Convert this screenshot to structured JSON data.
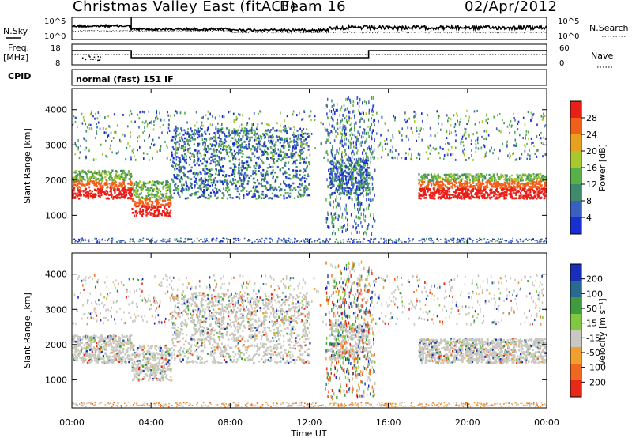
{
  "header": {
    "station": "Christmas Valley East (fitACF)",
    "beam": "Beam 16",
    "date": "02/Apr/2012"
  },
  "noise_panel": {
    "left_label": "N.Sky",
    "left_ticks": [
      "10^5",
      "10^0"
    ],
    "right_ticks": [
      "10^5",
      "10^0"
    ],
    "right_label": "N.Search"
  },
  "freq_panel": {
    "left_label_1": "Freq.",
    "left_label_2": "[MHz]",
    "left_ticks": [
      "18",
      "8"
    ],
    "right_ticks": [
      "60",
      "0"
    ],
    "right_label": "Nave"
  },
  "cpid_panel": {
    "label": "CPID",
    "mode": "normal (fast) 151 IF"
  },
  "colors": {
    "power": [
      "#1a2fd0",
      "#3a5fc0",
      "#3f8a6a",
      "#58b048",
      "#a8c830",
      "#e8a020",
      "#f06018",
      "#e82018"
    ],
    "velocity": [
      "#1a2fb8",
      "#2a6a90",
      "#3f9a40",
      "#80c840",
      "#c8c8c0",
      "#f0a030",
      "#f06820",
      "#e82818"
    ]
  },
  "chart_data": [
    {
      "type": "heatmap",
      "name": "Power",
      "ylabel": "Slant Range [km]",
      "xlabel": "",
      "ylim": [
        200,
        4600
      ],
      "yticks": [
        "1000",
        "2000",
        "3000",
        "4000"
      ],
      "colorbar": {
        "label": "Power [dB]",
        "range": [
          0,
          32
        ],
        "ticks": [
          "28",
          "24",
          "20",
          "16",
          "12",
          "8",
          "4"
        ]
      },
      "echo_bands_range_km": [
        {
          "t_start_h": 0.0,
          "t_end_h": 3.0,
          "range_lo": 1500,
          "range_hi": 2300,
          "mean_power_db": 28
        },
        {
          "t_start_h": 3.0,
          "t_end_h": 5.0,
          "range_lo": 1000,
          "range_hi": 2000,
          "mean_power_db": 28
        },
        {
          "t_start_h": 5.0,
          "t_end_h": 12.0,
          "range_lo": 1500,
          "range_hi": 3500,
          "mean_power_db": 8
        },
        {
          "t_start_h": 13.0,
          "t_end_h": 15.0,
          "range_lo": 1600,
          "range_hi": 2600,
          "mean_power_db": 12
        },
        {
          "t_start_h": 17.5,
          "t_end_h": 24.0,
          "range_lo": 1500,
          "range_hi": 2200,
          "mean_power_db": 26
        }
      ]
    },
    {
      "type": "heatmap",
      "name": "Velocity",
      "ylabel": "Slant Range [km]",
      "xlabel": "Time UT",
      "ylim": [
        200,
        4600
      ],
      "yticks": [
        "1000",
        "2000",
        "3000",
        "4000"
      ],
      "xticks": [
        "00:00",
        "04:00",
        "08:00",
        "12:00",
        "16:00",
        "20:00",
        "00:00"
      ],
      "colorbar": {
        "label": "Velocity [m s⁻¹]",
        "ticks": [
          "200",
          "100",
          "50",
          "15",
          "-15",
          "-50",
          "-100",
          "-200"
        ]
      }
    }
  ]
}
